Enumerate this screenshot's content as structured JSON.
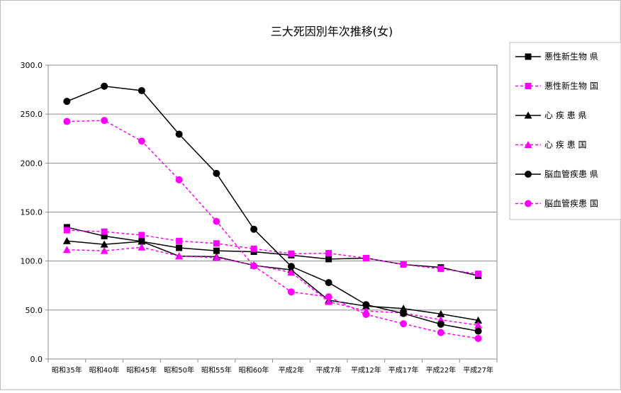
{
  "chart_data": {
    "type": "line",
    "title": "三大死因別年次推移(女)",
    "xlabel": "",
    "ylabel": "",
    "ylim": [
      0,
      300
    ],
    "yticks": [
      "0.0",
      "50.0",
      "100.0",
      "150.0",
      "200.0",
      "250.0",
      "300.0"
    ],
    "grid": true,
    "legend_position": "right",
    "categories": [
      "昭和35年",
      "昭和40年",
      "昭和45年",
      "昭和50年",
      "昭和55年",
      "昭和60年",
      "平成2年",
      "平成7年",
      "平成12年",
      "平成17年",
      "平成22年",
      "平成27年"
    ],
    "series": [
      {
        "name": "悪性新生物 県",
        "marker": "square",
        "color": "#000000",
        "dash": false,
        "values": [
          134.5,
          125.5,
          120.0,
          113.5,
          110.5,
          109.5,
          106.0,
          102.0,
          103.0,
          96.5,
          93.5,
          85.0
        ]
      },
      {
        "name": "悪性新生物 国",
        "marker": "square",
        "color": "#ff00ff",
        "dash": true,
        "values": [
          131.5,
          130.0,
          126.5,
          120.5,
          118.0,
          112.5,
          107.5,
          108.0,
          103.0,
          96.5,
          92.0,
          87.0
        ]
      },
      {
        "name": "心 疾 患 県",
        "marker": "triangle",
        "color": "#000000",
        "dash": false,
        "values": [
          120.5,
          117.0,
          120.0,
          105.0,
          104.5,
          95.5,
          91.0,
          60.0,
          54.0,
          51.5,
          46.0,
          39.5
        ]
      },
      {
        "name": "心 疾 患 国",
        "marker": "triangle",
        "color": "#ff00ff",
        "dash": true,
        "values": [
          111.5,
          110.5,
          114.0,
          105.0,
          103.5,
          96.0,
          88.5,
          58.5,
          49.0,
          47.0,
          40.0,
          34.5
        ]
      },
      {
        "name": "脳血管疾患 県",
        "marker": "circle",
        "color": "#000000",
        "dash": false,
        "values": [
          263.0,
          278.5,
          274.0,
          229.5,
          189.5,
          132.5,
          94.5,
          78.0,
          55.5,
          46.5,
          35.5,
          28.5
        ]
      },
      {
        "name": "脳血管疾患 国",
        "marker": "circle",
        "color": "#ff00ff",
        "dash": true,
        "values": [
          242.5,
          243.5,
          222.5,
          183.0,
          140.5,
          95.0,
          68.5,
          63.5,
          45.5,
          36.0,
          27.0,
          21.0
        ]
      }
    ]
  }
}
